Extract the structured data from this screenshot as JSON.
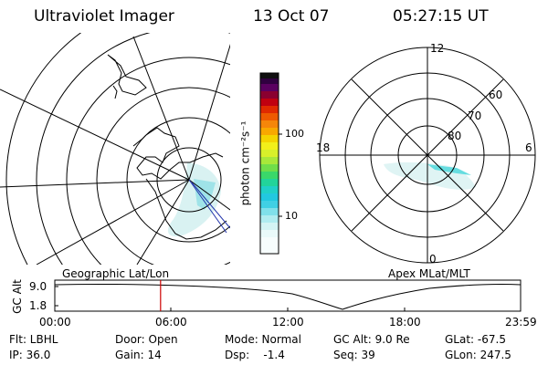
{
  "header": {
    "title": "Ultraviolet Imager",
    "date": "13 Oct 07",
    "time": "05:27:15 UT"
  },
  "colorbar": {
    "unit_label": "photon cm⁻²s⁻¹",
    "ticks": [
      "100",
      "10"
    ]
  },
  "right_plot": {
    "mlt_labels": [
      "12",
      "18",
      "6",
      "0"
    ],
    "lat_labels": [
      "60",
      "70",
      "80"
    ]
  },
  "timeline": {
    "axis_label": "GC Alt",
    "left_title": "Geographic Lat/Lon",
    "right_title": "Apex MLat/MLT",
    "y_ticks": [
      "9.0",
      "1.8"
    ],
    "x_ticks": [
      "00:00",
      "06:00",
      "12:00",
      "18:00",
      "23:59"
    ],
    "marker_time_hours": 5.45,
    "marker_color": "#cc0000"
  },
  "info": {
    "row1": [
      "Flt: LBHL",
      "Door: Open",
      "Mode: Normal",
      "GC Alt: 9.0 Re",
      "GLat: -67.5"
    ],
    "row2": [
      "IP: 36.0",
      "Gain: 14",
      "Dsp:    -1.4",
      "Seq: 39",
      "GLon: 247.5"
    ]
  }
}
